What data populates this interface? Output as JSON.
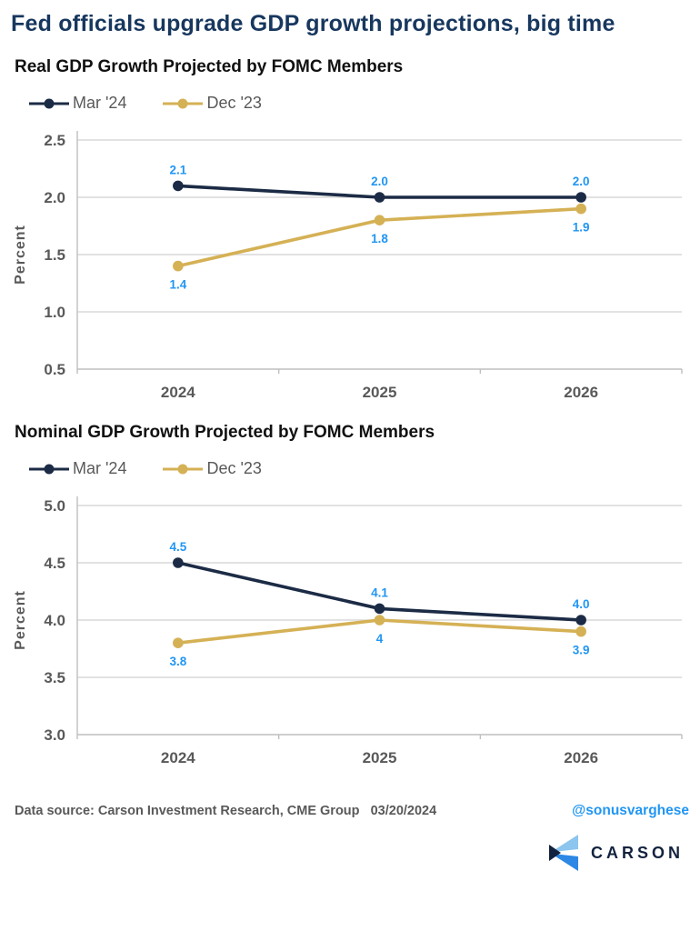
{
  "page": {
    "title": "Fed officials upgrade GDP growth projections, big time"
  },
  "colors": {
    "title_navy": "#17375e",
    "series_navy": "#1c2b45",
    "series_gold": "#d5b155",
    "data_label_blue": "#2196f3",
    "grid": "#d9d9d9",
    "axis": "#bfbfbf",
    "text_gray": "#595959",
    "logo_navy": "#13233f",
    "logo_light_blue": "#8cc5ee",
    "logo_mid_blue": "#2d87e4"
  },
  "chart_data": [
    {
      "type": "line",
      "title": "Real GDP Growth Projected by FOMC Members",
      "categories": [
        "2024",
        "2025",
        "2026"
      ],
      "series": [
        {
          "name": "Mar '24",
          "color": "#1c2b45",
          "values": [
            2.1,
            2.0,
            2.0
          ],
          "labels": [
            "2.1",
            "2.0",
            "2.0"
          ],
          "label_position": "above"
        },
        {
          "name": "Dec '23",
          "color": "#d5b155",
          "values": [
            1.4,
            1.8,
            1.9
          ],
          "labels": [
            "1.4",
            "1.8",
            "1.9"
          ],
          "label_position": "below"
        }
      ],
      "xlabel": "",
      "ylabel": "Percent",
      "ylim": [
        0.5,
        2.5
      ],
      "yticks": [
        "0.5",
        "1.0",
        "1.5",
        "2.0",
        "2.5"
      ],
      "grid": true,
      "legend_position": "top-left"
    },
    {
      "type": "line",
      "title": "Nominal GDP Growth Projected by FOMC Members",
      "categories": [
        "2024",
        "2025",
        "2026"
      ],
      "series": [
        {
          "name": "Mar '24",
          "color": "#1c2b45",
          "values": [
            4.5,
            4.1,
            4.0
          ],
          "labels": [
            "4.5",
            "4.1",
            "4.0"
          ],
          "label_position": "above"
        },
        {
          "name": "Dec '23",
          "color": "#d5b155",
          "values": [
            3.8,
            4.0,
            3.9
          ],
          "labels": [
            "3.8",
            "4",
            "3.9"
          ],
          "label_position": "below"
        }
      ],
      "xlabel": "",
      "ylabel": "Percent",
      "ylim": [
        3.0,
        5.0
      ],
      "yticks": [
        "3.0",
        "3.5",
        "4.0",
        "4.5",
        "5.0"
      ],
      "grid": true,
      "legend_position": "top-left"
    }
  ],
  "footer": {
    "source": "Data source: Carson Investment Research, CME Group   03/20/2024",
    "handle": "@sonusvarghese",
    "logo_text": "CARSON"
  }
}
